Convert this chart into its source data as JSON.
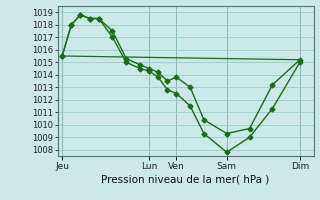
{
  "title": "Pression niveau de la mer( hPa )",
  "bg_color": "#cce8e8",
  "grid_color": "#99cccc",
  "line_color": "#1a6e1a",
  "ylim": [
    1007.5,
    1019.5
  ],
  "yticks": [
    1008,
    1009,
    1010,
    1011,
    1012,
    1013,
    1014,
    1015,
    1016,
    1017,
    1018,
    1019
  ],
  "xlim": [
    0,
    28
  ],
  "xtick_labels": [
    "Jeu",
    "Lun",
    "Ven",
    "Sam",
    "Dim"
  ],
  "xtick_positions": [
    0.5,
    10,
    13,
    18.5,
    26.5
  ],
  "vlines": [
    0.5,
    10,
    13,
    18.5,
    26.5
  ],
  "line1_x": [
    0.5,
    1.5,
    2.5,
    3.5,
    4.5,
    6.0,
    7.5,
    9.0,
    10.0,
    11.0,
    12.0,
    13.0,
    14.5,
    16.0,
    18.5,
    21.0,
    23.5,
    26.5
  ],
  "line1_y": [
    1015.5,
    1018.0,
    1018.8,
    1018.5,
    1018.5,
    1017.5,
    1015.3,
    1014.8,
    1014.5,
    1014.2,
    1013.5,
    1013.8,
    1013.0,
    1010.4,
    1009.3,
    1009.7,
    1013.2,
    1015.2
  ],
  "line2_x": [
    0.5,
    1.5,
    2.5,
    3.5,
    4.5,
    6.0,
    7.5,
    9.0,
    10.0,
    11.0,
    12.0,
    13.0,
    14.5,
    16.0,
    18.5,
    21.0,
    23.5,
    26.5
  ],
  "line2_y": [
    1015.5,
    1018.0,
    1018.8,
    1018.5,
    1018.5,
    1017.0,
    1015.0,
    1014.5,
    1014.3,
    1013.8,
    1012.8,
    1012.5,
    1011.5,
    1009.3,
    1007.8,
    1009.0,
    1011.3,
    1015.0
  ],
  "line3_x": [
    0.5,
    26.5
  ],
  "line3_y": [
    1015.5,
    1015.2
  ]
}
